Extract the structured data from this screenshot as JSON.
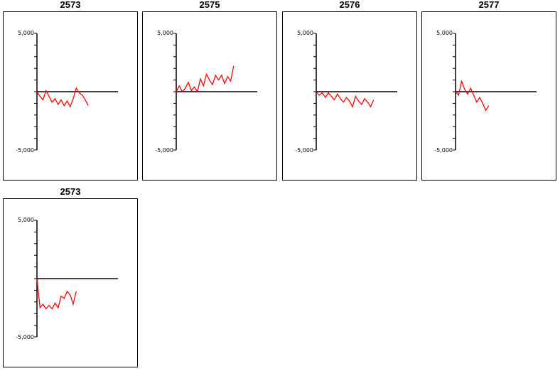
{
  "colors": {
    "series": "#ff0000",
    "axis": "#000000",
    "frame": "#000000"
  },
  "chart_data": [
    {
      "type": "line",
      "title": "2573",
      "ylim": [
        -5000,
        5000
      ],
      "ytick_labels": [
        "5,000",
        "-5,000"
      ],
      "series": [
        {
          "values": [
            0,
            -400,
            -700,
            100,
            -400,
            -900,
            -600,
            -1100,
            -700,
            -1200,
            -800,
            -1300,
            -600,
            300,
            -100,
            -300,
            -700,
            -1200
          ]
        }
      ]
    },
    {
      "type": "line",
      "title": "2575",
      "ylim": [
        -5000,
        5000
      ],
      "ytick_labels": [
        "5,000",
        "-5,000"
      ],
      "series": [
        {
          "values": [
            0,
            500,
            0,
            300,
            800,
            100,
            400,
            0,
            1100,
            500,
            1500,
            1000,
            600,
            1400,
            1000,
            1400,
            700,
            1300,
            900,
            2200
          ]
        }
      ]
    },
    {
      "type": "line",
      "title": "2576",
      "ylim": [
        -5000,
        5000
      ],
      "ytick_labels": [
        "5,000",
        "-5,000"
      ],
      "series": [
        {
          "values": [
            0,
            -300,
            -100,
            -500,
            -100,
            -400,
            -700,
            -200,
            -600,
            -900,
            -500,
            -800,
            -1300,
            -400,
            -800,
            -1100,
            -600,
            -900,
            -1300,
            -700
          ]
        }
      ]
    },
    {
      "type": "line",
      "title": "2577",
      "ylim": [
        -5000,
        5000
      ],
      "ytick_labels": [
        "5,000",
        "-5,000"
      ],
      "series": [
        {
          "values": [
            0,
            -300,
            900,
            200,
            -200,
            300,
            -300,
            -900,
            -500,
            -1000,
            -1600,
            -1200
          ]
        }
      ]
    },
    {
      "type": "line",
      "title": "2573",
      "ylim": [
        -5000,
        5000
      ],
      "ytick_labels": [
        "5,000",
        "-5,000"
      ],
      "series": [
        {
          "values": [
            0,
            -2500,
            -2200,
            -2600,
            -2300,
            -2600,
            -2100,
            -2500,
            -1500,
            -1700,
            -1100,
            -1400,
            -2200,
            -1100
          ]
        }
      ]
    }
  ]
}
